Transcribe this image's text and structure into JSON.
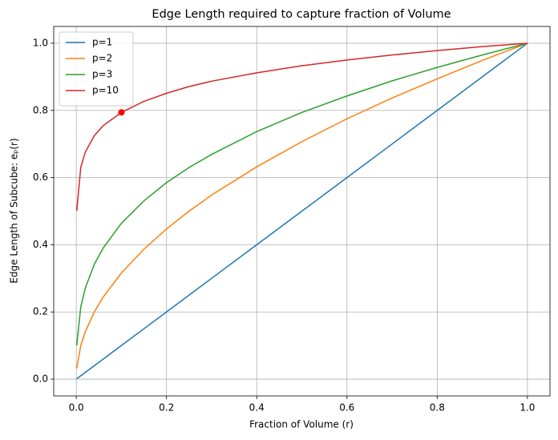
{
  "chart_data": {
    "type": "line",
    "title": "Edge Length required to capture fraction of Volume",
    "xlabel": "Fraction of Volume (r)",
    "ylabel": "Edge Length of Subcube: eₚ(r)",
    "x": [
      0.001,
      0.01,
      0.02,
      0.04,
      0.06,
      0.1,
      0.15,
      0.2,
      0.25,
      0.3,
      0.4,
      0.5,
      0.6,
      0.7,
      0.8,
      0.9,
      1.0
    ],
    "series": [
      {
        "name": "p=1",
        "color": "#1f77b4",
        "values": [
          0.001,
          0.01,
          0.02,
          0.04,
          0.06,
          0.1,
          0.15,
          0.2,
          0.25,
          0.3,
          0.4,
          0.5,
          0.6,
          0.7,
          0.8,
          0.9,
          1.0
        ]
      },
      {
        "name": "p=2",
        "color": "#ff7f0e",
        "values": [
          0.032,
          0.1,
          0.141,
          0.2,
          0.245,
          0.316,
          0.387,
          0.447,
          0.5,
          0.548,
          0.632,
          0.707,
          0.775,
          0.837,
          0.894,
          0.949,
          1.0
        ]
      },
      {
        "name": "p=3",
        "color": "#2ca02c",
        "values": [
          0.1,
          0.215,
          0.271,
          0.342,
          0.391,
          0.464,
          0.531,
          0.585,
          0.63,
          0.669,
          0.737,
          0.794,
          0.843,
          0.888,
          0.928,
          0.965,
          1.0
        ]
      },
      {
        "name": "p=10",
        "color": "#d62728",
        "values": [
          0.501,
          0.631,
          0.676,
          0.725,
          0.755,
          0.794,
          0.827,
          0.851,
          0.871,
          0.887,
          0.912,
          0.933,
          0.95,
          0.965,
          0.978,
          0.99,
          1.0
        ]
      }
    ],
    "highlight": {
      "x": 0.1,
      "y": 0.794,
      "color": "#ff0000"
    },
    "xlim": [
      -0.05,
      1.05
    ],
    "ylim": [
      -0.05,
      1.05
    ],
    "xticks": [
      {
        "value": 0,
        "label": "0.0"
      },
      {
        "value": 0.2,
        "label": "0.2"
      },
      {
        "value": 0.4,
        "label": "0.4"
      },
      {
        "value": 0.6,
        "label": "0.6"
      },
      {
        "value": 0.8,
        "label": "0.8"
      },
      {
        "value": 1,
        "label": "1.0"
      }
    ],
    "yticks": [
      {
        "value": 0,
        "label": "0.0"
      },
      {
        "value": 0.2,
        "label": "0.2"
      },
      {
        "value": 0.4,
        "label": "0.4"
      },
      {
        "value": 0.6,
        "label": "0.6"
      },
      {
        "value": 0.8,
        "label": "0.8"
      },
      {
        "value": 1,
        "label": "1.0"
      }
    ],
    "grid": true,
    "legend": "upper left"
  }
}
